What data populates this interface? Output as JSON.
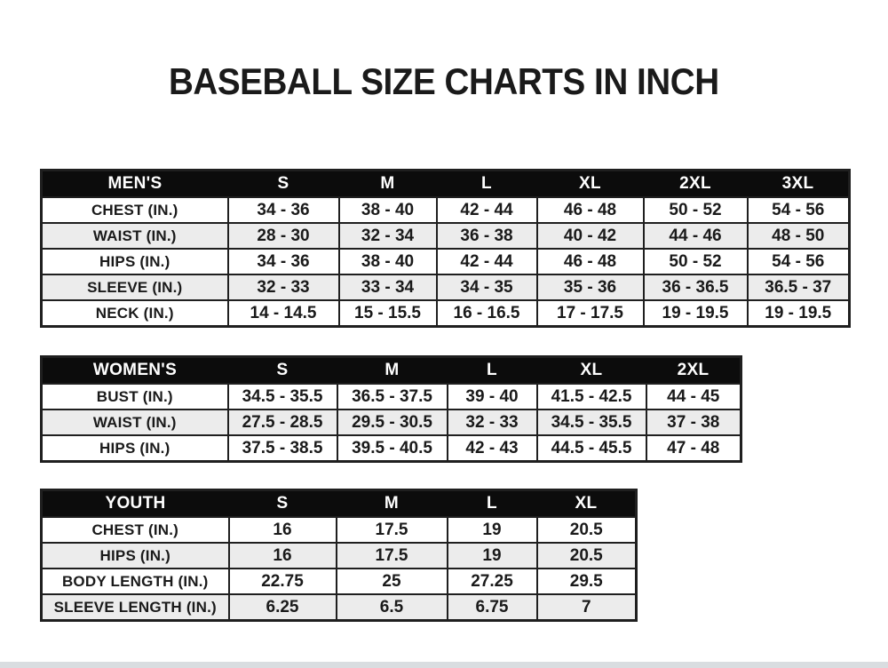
{
  "page": {
    "title": "BASEBALL SIZE CHARTS IN INCH",
    "colors": {
      "page_bg": "#ffffff",
      "header_bg": "#0c0c0c",
      "header_text": "#ffffff",
      "alt_row_bg": "#ececec",
      "border": "#1f1f1f",
      "text": "#1a1a1a",
      "bottom_bar": "#d9dde0"
    }
  },
  "tables": {
    "mens": {
      "header": [
        "MEN'S",
        "S",
        "M",
        "L",
        "XL",
        "2XL",
        "3XL"
      ],
      "rows": [
        [
          "CHEST (IN.)",
          "34 - 36",
          "38 - 40",
          "42 - 44",
          "46 - 48",
          "50 - 52",
          "54 - 56"
        ],
        [
          "WAIST (IN.)",
          "28 - 30",
          "32 - 34",
          "36 - 38",
          "40 - 42",
          "44 - 46",
          "48 - 50"
        ],
        [
          "HIPS (IN.)",
          "34 - 36",
          "38 - 40",
          "42 - 44",
          "46 - 48",
          "50 - 52",
          "54 - 56"
        ],
        [
          "SLEEVE (IN.)",
          "32 - 33",
          "33 - 34",
          "34 - 35",
          "35 - 36",
          "36 - 36.5",
          "36.5 - 37"
        ],
        [
          "NECK (IN.)",
          "14 - 14.5",
          "15 - 15.5",
          "16 - 16.5",
          "17 - 17.5",
          "19 - 19.5",
          "19 - 19.5"
        ]
      ]
    },
    "womens": {
      "header": [
        "WOMEN'S",
        "S",
        "M",
        "L",
        "XL",
        "2XL"
      ],
      "rows": [
        [
          "BUST (IN.)",
          "34.5 - 35.5",
          "36.5 - 37.5",
          "39 - 40",
          "41.5 - 42.5",
          "44 - 45"
        ],
        [
          "WAIST (IN.)",
          "27.5 - 28.5",
          "29.5 - 30.5",
          "32 - 33",
          "34.5 - 35.5",
          "37 - 38"
        ],
        [
          "HIPS (IN.)",
          "37.5 - 38.5",
          "39.5 - 40.5",
          "42 - 43",
          "44.5 - 45.5",
          "47 - 48"
        ]
      ]
    },
    "youth": {
      "header": [
        "YOUTH",
        "S",
        "M",
        "L",
        "XL"
      ],
      "rows": [
        [
          "CHEST (IN.)",
          "16",
          "17.5",
          "19",
          "20.5"
        ],
        [
          "HIPS (IN.)",
          "16",
          "17.5",
          "19",
          "20.5"
        ],
        [
          "BODY LENGTH (IN.)",
          "22.75",
          "25",
          "27.25",
          "29.5"
        ],
        [
          "SLEEVE LENGTH (IN.)",
          "6.25",
          "6.5",
          "6.75",
          "7"
        ]
      ]
    }
  }
}
